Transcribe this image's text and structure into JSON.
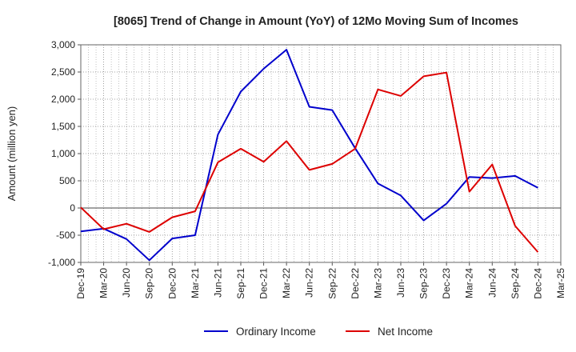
{
  "chart_data": {
    "type": "line",
    "title": "[8065]  Trend of Change in Amount (YoY) of 12Mo Moving Sum of Incomes",
    "ylabel": "Amount (million yen)",
    "xlabel": "",
    "ylim": [
      -1000,
      3000
    ],
    "yticks": [
      3000,
      2500,
      2000,
      1500,
      1000,
      500,
      0,
      -500,
      -1000
    ],
    "ytick_labels": [
      "3,000",
      "2,500",
      "2,000",
      "1,500",
      "1,000",
      "500",
      "0",
      "-500",
      "-1,000"
    ],
    "x": [
      "Dec-19",
      "Mar-20",
      "Jun-20",
      "Sep-20",
      "Dec-20",
      "Mar-21",
      "Jun-21",
      "Sep-21",
      "Dec-21",
      "Mar-22",
      "Jun-22",
      "Sep-22",
      "Dec-22",
      "Mar-23",
      "Jun-23",
      "Sep-23",
      "Dec-23",
      "Mar-24",
      "Jun-24",
      "Sep-24",
      "Dec-24",
      "Mar-25"
    ],
    "grid": true,
    "legend_position": "bottom",
    "series": [
      {
        "name": "Ordinary Income",
        "color": "#0000cc",
        "values": [
          -430,
          -380,
          -570,
          -960,
          -560,
          -500,
          1350,
          2140,
          2560,
          2910,
          1860,
          1800,
          1100,
          450,
          230,
          -230,
          80,
          570,
          550,
          590,
          370,
          null
        ]
      },
      {
        "name": "Net Income",
        "color": "#dd0000",
        "values": [
          10,
          -390,
          -290,
          -440,
          -170,
          -60,
          840,
          1090,
          850,
          1230,
          700,
          810,
          1090,
          2180,
          2060,
          2420,
          2490,
          300,
          800,
          -330,
          -810,
          null
        ]
      }
    ]
  }
}
